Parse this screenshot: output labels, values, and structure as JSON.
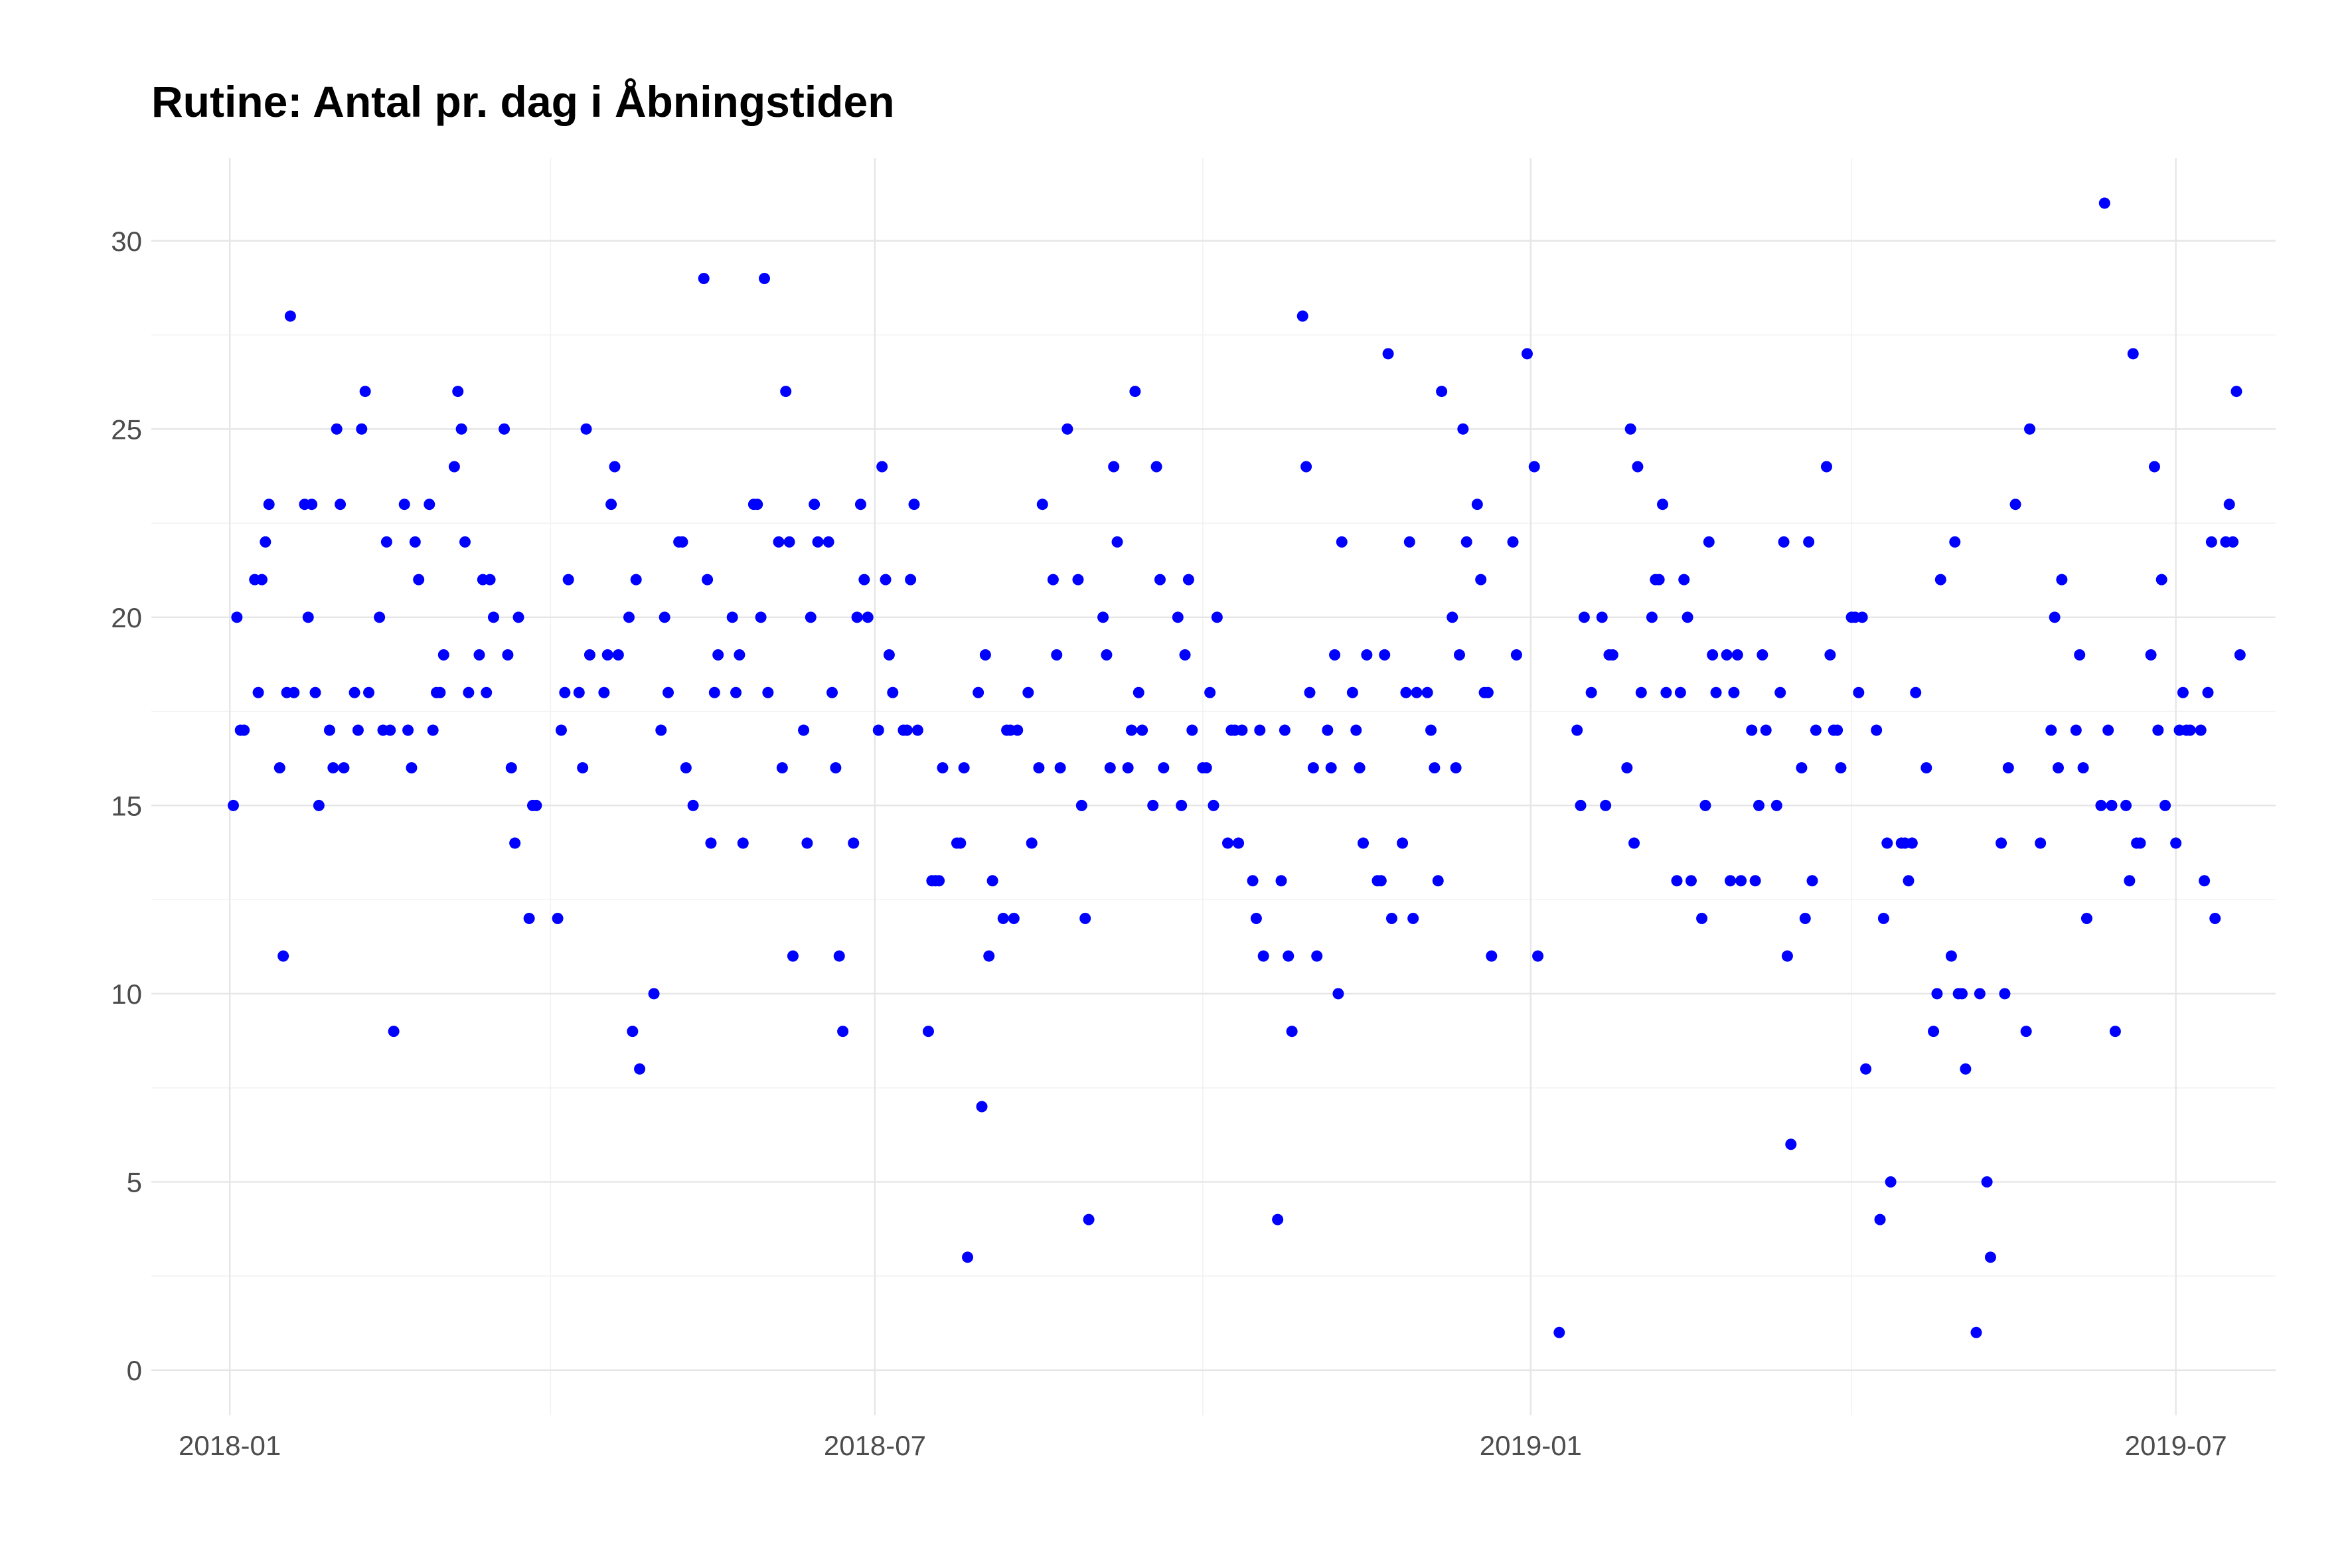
{
  "chart_data": {
    "type": "scatter",
    "title": "Rutine: Antal pr. dag i Åbningstiden",
    "xlabel": "",
    "ylabel": "",
    "x_axis": {
      "type": "date",
      "range": [
        "2017-12-10",
        "2019-07-29"
      ],
      "major_ticks": [
        {
          "date": "2018-01-01",
          "label": "2018-01"
        },
        {
          "date": "2018-07-01",
          "label": "2018-07"
        },
        {
          "date": "2019-01-01",
          "label": "2019-01"
        },
        {
          "date": "2019-07-01",
          "label": "2019-07"
        }
      ],
      "minor_ticks": [
        "2018-04-01",
        "2018-10-01",
        "2019-04-01"
      ]
    },
    "y_axis": {
      "range": [
        -1.2,
        32.2
      ],
      "major_ticks": [
        0,
        5,
        10,
        15,
        20,
        25,
        30
      ],
      "tick_labels": [
        "0",
        "5",
        "10",
        "15",
        "20",
        "25",
        "30"
      ],
      "minor_ticks": [
        2.5,
        7.5,
        12.5,
        17.5,
        22.5,
        27.5,
        32.5
      ]
    },
    "grid": true,
    "legend": "none",
    "point_color": "#0000ff",
    "points": [
      [
        "2018-01-02",
        15
      ],
      [
        "2018-01-03",
        20
      ],
      [
        "2018-01-04",
        17
      ],
      [
        "2018-01-05",
        17
      ],
      [
        "2018-01-08",
        21
      ],
      [
        "2018-01-09",
        18
      ],
      [
        "2018-01-10",
        21
      ],
      [
        "2018-01-11",
        22
      ],
      [
        "2018-01-12",
        23
      ],
      [
        "2018-01-15",
        16
      ],
      [
        "2018-01-16",
        11
      ],
      [
        "2018-01-17",
        18
      ],
      [
        "2018-01-18",
        28
      ],
      [
        "2018-01-19",
        18
      ],
      [
        "2018-01-22",
        23
      ],
      [
        "2018-01-23",
        20
      ],
      [
        "2018-01-24",
        23
      ],
      [
        "2018-01-25",
        18
      ],
      [
        "2018-01-26",
        15
      ],
      [
        "2018-01-29",
        17
      ],
      [
        "2018-01-30",
        16
      ],
      [
        "2018-01-31",
        25
      ],
      [
        "2018-02-01",
        23
      ],
      [
        "2018-02-02",
        16
      ],
      [
        "2018-02-05",
        18
      ],
      [
        "2018-02-06",
        17
      ],
      [
        "2018-02-07",
        25
      ],
      [
        "2018-02-08",
        26
      ],
      [
        "2018-02-09",
        18
      ],
      [
        "2018-02-12",
        20
      ],
      [
        "2018-02-13",
        17
      ],
      [
        "2018-02-14",
        22
      ],
      [
        "2018-02-15",
        17
      ],
      [
        "2018-02-16",
        9
      ],
      [
        "2018-02-19",
        23
      ],
      [
        "2018-02-20",
        17
      ],
      [
        "2018-02-21",
        16
      ],
      [
        "2018-02-22",
        22
      ],
      [
        "2018-02-23",
        21
      ],
      [
        "2018-02-26",
        23
      ],
      [
        "2018-02-27",
        17
      ],
      [
        "2018-02-28",
        18
      ],
      [
        "2018-03-01",
        18
      ],
      [
        "2018-03-02",
        19
      ],
      [
        "2018-03-05",
        24
      ],
      [
        "2018-03-06",
        26
      ],
      [
        "2018-03-07",
        25
      ],
      [
        "2018-03-08",
        22
      ],
      [
        "2018-03-09",
        18
      ],
      [
        "2018-03-12",
        19
      ],
      [
        "2018-03-13",
        21
      ],
      [
        "2018-03-14",
        18
      ],
      [
        "2018-03-15",
        21
      ],
      [
        "2018-03-16",
        20
      ],
      [
        "2018-03-19",
        25
      ],
      [
        "2018-03-20",
        19
      ],
      [
        "2018-03-21",
        16
      ],
      [
        "2018-03-22",
        14
      ],
      [
        "2018-03-23",
        20
      ],
      [
        "2018-03-26",
        12
      ],
      [
        "2018-03-27",
        15
      ],
      [
        "2018-03-28",
        15
      ],
      [
        "2018-04-03",
        12
      ],
      [
        "2018-04-04",
        17
      ],
      [
        "2018-04-05",
        18
      ],
      [
        "2018-04-06",
        21
      ],
      [
        "2018-04-09",
        18
      ],
      [
        "2018-04-10",
        16
      ],
      [
        "2018-04-11",
        25
      ],
      [
        "2018-04-12",
        19
      ],
      [
        "2018-04-16",
        18
      ],
      [
        "2018-04-17",
        19
      ],
      [
        "2018-04-18",
        23
      ],
      [
        "2018-04-19",
        24
      ],
      [
        "2018-04-20",
        19
      ],
      [
        "2018-04-23",
        20
      ],
      [
        "2018-04-24",
        9
      ],
      [
        "2018-04-25",
        21
      ],
      [
        "2018-04-26",
        8
      ],
      [
        "2018-04-30",
        10
      ],
      [
        "2018-05-02",
        17
      ],
      [
        "2018-05-03",
        20
      ],
      [
        "2018-05-04",
        18
      ],
      [
        "2018-05-07",
        22
      ],
      [
        "2018-05-08",
        22
      ],
      [
        "2018-05-09",
        16
      ],
      [
        "2018-05-11",
        15
      ],
      [
        "2018-05-14",
        29
      ],
      [
        "2018-05-15",
        21
      ],
      [
        "2018-05-16",
        14
      ],
      [
        "2018-05-17",
        18
      ],
      [
        "2018-05-18",
        19
      ],
      [
        "2018-05-22",
        20
      ],
      [
        "2018-05-23",
        18
      ],
      [
        "2018-05-24",
        19
      ],
      [
        "2018-05-25",
        14
      ],
      [
        "2018-05-28",
        23
      ],
      [
        "2018-05-29",
        23
      ],
      [
        "2018-05-30",
        20
      ],
      [
        "2018-05-31",
        29
      ],
      [
        "2018-06-01",
        18
      ],
      [
        "2018-06-04",
        22
      ],
      [
        "2018-06-05",
        16
      ],
      [
        "2018-06-06",
        26
      ],
      [
        "2018-06-07",
        22
      ],
      [
        "2018-06-08",
        11
      ],
      [
        "2018-06-11",
        17
      ],
      [
        "2018-06-12",
        14
      ],
      [
        "2018-06-13",
        20
      ],
      [
        "2018-06-14",
        23
      ],
      [
        "2018-06-15",
        22
      ],
      [
        "2018-06-18",
        22
      ],
      [
        "2018-06-19",
        18
      ],
      [
        "2018-06-20",
        16
      ],
      [
        "2018-06-21",
        11
      ],
      [
        "2018-06-22",
        9
      ],
      [
        "2018-06-25",
        14
      ],
      [
        "2018-06-26",
        20
      ],
      [
        "2018-06-27",
        23
      ],
      [
        "2018-06-28",
        21
      ],
      [
        "2018-06-29",
        20
      ],
      [
        "2018-07-02",
        17
      ],
      [
        "2018-07-03",
        24
      ],
      [
        "2018-07-04",
        21
      ],
      [
        "2018-07-05",
        19
      ],
      [
        "2018-07-06",
        18
      ],
      [
        "2018-07-09",
        17
      ],
      [
        "2018-07-10",
        17
      ],
      [
        "2018-07-11",
        21
      ],
      [
        "2018-07-12",
        23
      ],
      [
        "2018-07-13",
        17
      ],
      [
        "2018-07-16",
        9
      ],
      [
        "2018-07-17",
        13
      ],
      [
        "2018-07-18",
        13
      ],
      [
        "2018-07-19",
        13
      ],
      [
        "2018-07-20",
        16
      ],
      [
        "2018-07-24",
        14
      ],
      [
        "2018-07-25",
        14
      ],
      [
        "2018-07-26",
        16
      ],
      [
        "2018-07-27",
        3
      ],
      [
        "2018-07-30",
        18
      ],
      [
        "2018-07-31",
        7
      ],
      [
        "2018-08-01",
        19
      ],
      [
        "2018-08-02",
        11
      ],
      [
        "2018-08-03",
        13
      ],
      [
        "2018-08-06",
        12
      ],
      [
        "2018-08-07",
        17
      ],
      [
        "2018-08-08",
        17
      ],
      [
        "2018-08-09",
        12
      ],
      [
        "2018-08-10",
        17
      ],
      [
        "2018-08-13",
        18
      ],
      [
        "2018-08-14",
        14
      ],
      [
        "2018-08-16",
        16
      ],
      [
        "2018-08-17",
        23
      ],
      [
        "2018-08-20",
        21
      ],
      [
        "2018-08-21",
        19
      ],
      [
        "2018-08-22",
        16
      ],
      [
        "2018-08-24",
        25
      ],
      [
        "2018-08-27",
        21
      ],
      [
        "2018-08-28",
        15
      ],
      [
        "2018-08-29",
        12
      ],
      [
        "2018-08-30",
        4
      ],
      [
        "2018-09-03",
        20
      ],
      [
        "2018-09-04",
        19
      ],
      [
        "2018-09-05",
        16
      ],
      [
        "2018-09-06",
        24
      ],
      [
        "2018-09-07",
        22
      ],
      [
        "2018-09-10",
        16
      ],
      [
        "2018-09-11",
        17
      ],
      [
        "2018-09-12",
        26
      ],
      [
        "2018-09-13",
        18
      ],
      [
        "2018-09-14",
        17
      ],
      [
        "2018-09-17",
        15
      ],
      [
        "2018-09-18",
        24
      ],
      [
        "2018-09-19",
        21
      ],
      [
        "2018-09-20",
        16
      ],
      [
        "2018-09-24",
        20
      ],
      [
        "2018-09-25",
        15
      ],
      [
        "2018-09-26",
        19
      ],
      [
        "2018-09-27",
        21
      ],
      [
        "2018-09-28",
        17
      ],
      [
        "2018-10-01",
        16
      ],
      [
        "2018-10-02",
        16
      ],
      [
        "2018-10-03",
        18
      ],
      [
        "2018-10-04",
        15
      ],
      [
        "2018-10-05",
        20
      ],
      [
        "2018-10-08",
        14
      ],
      [
        "2018-10-09",
        17
      ],
      [
        "2018-10-10",
        17
      ],
      [
        "2018-10-11",
        14
      ],
      [
        "2018-10-12",
        17
      ],
      [
        "2018-10-15",
        13
      ],
      [
        "2018-10-16",
        12
      ],
      [
        "2018-10-17",
        17
      ],
      [
        "2018-10-18",
        11
      ],
      [
        "2018-10-22",
        4
      ],
      [
        "2018-10-23",
        13
      ],
      [
        "2018-10-24",
        17
      ],
      [
        "2018-10-25",
        11
      ],
      [
        "2018-10-26",
        9
      ],
      [
        "2018-10-29",
        28
      ],
      [
        "2018-10-30",
        24
      ],
      [
        "2018-10-31",
        18
      ],
      [
        "2018-11-01",
        16
      ],
      [
        "2018-11-02",
        11
      ],
      [
        "2018-11-05",
        17
      ],
      [
        "2018-11-06",
        16
      ],
      [
        "2018-11-07",
        19
      ],
      [
        "2018-11-08",
        10
      ],
      [
        "2018-11-09",
        22
      ],
      [
        "2018-11-12",
        18
      ],
      [
        "2018-11-13",
        17
      ],
      [
        "2018-11-14",
        16
      ],
      [
        "2018-11-15",
        14
      ],
      [
        "2018-11-16",
        19
      ],
      [
        "2018-11-19",
        13
      ],
      [
        "2018-11-20",
        13
      ],
      [
        "2018-11-21",
        19
      ],
      [
        "2018-11-22",
        27
      ],
      [
        "2018-11-23",
        12
      ],
      [
        "2018-11-26",
        14
      ],
      [
        "2018-11-27",
        18
      ],
      [
        "2018-11-28",
        22
      ],
      [
        "2018-11-29",
        12
      ],
      [
        "2018-11-30",
        18
      ],
      [
        "2018-12-03",
        18
      ],
      [
        "2018-12-04",
        17
      ],
      [
        "2018-12-05",
        16
      ],
      [
        "2018-12-06",
        13
      ],
      [
        "2018-12-07",
        26
      ],
      [
        "2018-12-10",
        20
      ],
      [
        "2018-12-11",
        16
      ],
      [
        "2018-12-12",
        19
      ],
      [
        "2018-12-13",
        25
      ],
      [
        "2018-12-14",
        22
      ],
      [
        "2018-12-17",
        23
      ],
      [
        "2018-12-18",
        21
      ],
      [
        "2018-12-19",
        18
      ],
      [
        "2018-12-20",
        18
      ],
      [
        "2018-12-21",
        11
      ],
      [
        "2018-12-27",
        22
      ],
      [
        "2018-12-28",
        19
      ],
      [
        "2018-12-31",
        27
      ],
      [
        "2019-01-02",
        24
      ],
      [
        "2019-01-03",
        11
      ],
      [
        "2019-01-09",
        1
      ],
      [
        "2019-01-14",
        17
      ],
      [
        "2019-01-15",
        15
      ],
      [
        "2019-01-16",
        20
      ],
      [
        "2019-01-18",
        18
      ],
      [
        "2019-01-21",
        20
      ],
      [
        "2019-01-22",
        15
      ],
      [
        "2019-01-23",
        19
      ],
      [
        "2019-01-24",
        19
      ],
      [
        "2019-01-28",
        16
      ],
      [
        "2019-01-29",
        25
      ],
      [
        "2019-01-30",
        14
      ],
      [
        "2019-01-31",
        24
      ],
      [
        "2019-02-01",
        18
      ],
      [
        "2019-02-04",
        20
      ],
      [
        "2019-02-05",
        21
      ],
      [
        "2019-02-06",
        21
      ],
      [
        "2019-02-07",
        23
      ],
      [
        "2019-02-08",
        18
      ],
      [
        "2019-02-11",
        13
      ],
      [
        "2019-02-12",
        18
      ],
      [
        "2019-02-13",
        21
      ],
      [
        "2019-02-14",
        20
      ],
      [
        "2019-02-15",
        13
      ],
      [
        "2019-02-18",
        12
      ],
      [
        "2019-02-19",
        15
      ],
      [
        "2019-02-20",
        22
      ],
      [
        "2019-02-21",
        19
      ],
      [
        "2019-02-22",
        18
      ],
      [
        "2019-02-25",
        19
      ],
      [
        "2019-02-26",
        13
      ],
      [
        "2019-02-27",
        18
      ],
      [
        "2019-02-28",
        19
      ],
      [
        "2019-03-01",
        13
      ],
      [
        "2019-03-04",
        17
      ],
      [
        "2019-03-05",
        13
      ],
      [
        "2019-03-06",
        15
      ],
      [
        "2019-03-07",
        19
      ],
      [
        "2019-03-08",
        17
      ],
      [
        "2019-03-11",
        15
      ],
      [
        "2019-03-12",
        18
      ],
      [
        "2019-03-13",
        22
      ],
      [
        "2019-03-14",
        11
      ],
      [
        "2019-03-15",
        6
      ],
      [
        "2019-03-18",
        16
      ],
      [
        "2019-03-19",
        12
      ],
      [
        "2019-03-20",
        22
      ],
      [
        "2019-03-21",
        13
      ],
      [
        "2019-03-22",
        17
      ],
      [
        "2019-03-25",
        24
      ],
      [
        "2019-03-26",
        19
      ],
      [
        "2019-03-27",
        17
      ],
      [
        "2019-03-28",
        17
      ],
      [
        "2019-03-29",
        16
      ],
      [
        "2019-04-01",
        20
      ],
      [
        "2019-04-02",
        20
      ],
      [
        "2019-04-03",
        18
      ],
      [
        "2019-04-04",
        20
      ],
      [
        "2019-04-05",
        8
      ],
      [
        "2019-04-08",
        17
      ],
      [
        "2019-04-09",
        4
      ],
      [
        "2019-04-10",
        12
      ],
      [
        "2019-04-11",
        14
      ],
      [
        "2019-04-12",
        5
      ],
      [
        "2019-04-15",
        14
      ],
      [
        "2019-04-16",
        14
      ],
      [
        "2019-04-17",
        13
      ],
      [
        "2019-04-18",
        14
      ],
      [
        "2019-04-19",
        18
      ],
      [
        "2019-04-22",
        16
      ],
      [
        "2019-04-24",
        9
      ],
      [
        "2019-04-25",
        10
      ],
      [
        "2019-04-26",
        21
      ],
      [
        "2019-04-29",
        11
      ],
      [
        "2019-04-30",
        22
      ],
      [
        "2019-05-01",
        10
      ],
      [
        "2019-05-02",
        10
      ],
      [
        "2019-05-03",
        8
      ],
      [
        "2019-05-06",
        1
      ],
      [
        "2019-05-07",
        10
      ],
      [
        "2019-05-09",
        5
      ],
      [
        "2019-05-10",
        3
      ],
      [
        "2019-05-13",
        14
      ],
      [
        "2019-05-14",
        10
      ],
      [
        "2019-05-15",
        16
      ],
      [
        "2019-05-17",
        23
      ],
      [
        "2019-05-20",
        9
      ],
      [
        "2019-05-21",
        25
      ],
      [
        "2019-05-24",
        14
      ],
      [
        "2019-05-27",
        17
      ],
      [
        "2019-05-28",
        20
      ],
      [
        "2019-05-29",
        16
      ],
      [
        "2019-05-30",
        21
      ],
      [
        "2019-06-03",
        17
      ],
      [
        "2019-06-04",
        19
      ],
      [
        "2019-06-05",
        16
      ],
      [
        "2019-06-06",
        12
      ],
      [
        "2019-06-10",
        15
      ],
      [
        "2019-06-11",
        31
      ],
      [
        "2019-06-12",
        17
      ],
      [
        "2019-06-13",
        15
      ],
      [
        "2019-06-14",
        9
      ],
      [
        "2019-06-17",
        15
      ],
      [
        "2019-06-18",
        13
      ],
      [
        "2019-06-19",
        27
      ],
      [
        "2019-06-20",
        14
      ],
      [
        "2019-06-21",
        14
      ],
      [
        "2019-06-24",
        19
      ],
      [
        "2019-06-25",
        24
      ],
      [
        "2019-06-26",
        17
      ],
      [
        "2019-06-27",
        21
      ],
      [
        "2019-06-28",
        15
      ],
      [
        "2019-07-01",
        14
      ],
      [
        "2019-07-02",
        17
      ],
      [
        "2019-07-03",
        18
      ],
      [
        "2019-07-04",
        17
      ],
      [
        "2019-07-05",
        17
      ],
      [
        "2019-07-08",
        17
      ],
      [
        "2019-07-09",
        13
      ],
      [
        "2019-07-10",
        18
      ],
      [
        "2019-07-11",
        22
      ],
      [
        "2019-07-12",
        12
      ],
      [
        "2019-07-15",
        22
      ],
      [
        "2019-07-16",
        23
      ],
      [
        "2019-07-17",
        22
      ],
      [
        "2019-07-18",
        26
      ],
      [
        "2019-07-19",
        19
      ]
    ]
  }
}
